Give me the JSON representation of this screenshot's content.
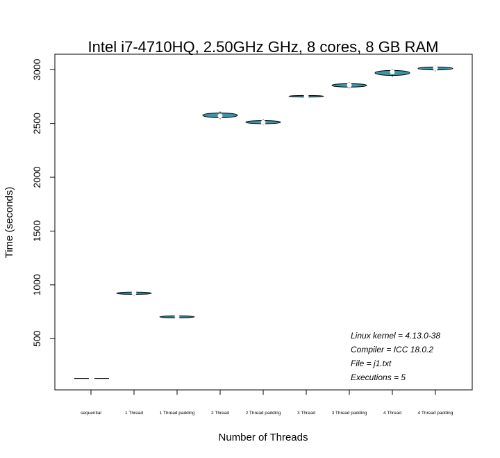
{
  "chart_data": {
    "type": "violin",
    "title": "Intel i7-4710HQ, 2.50GHz GHz, 8 cores, 8 GB RAM",
    "xlabel": "Number of Threads",
    "ylabel": "Time (seconds)",
    "ylim": [
      0,
      3150
    ],
    "yticks": [
      500,
      1000,
      1500,
      2000,
      2500,
      3000
    ],
    "grid": false,
    "fill_color": "#3a95ae",
    "categories": [
      "sequential",
      "1 Thread",
      "1 Thread padding",
      "2 Thread",
      "2 Thread padding",
      "3 Thread",
      "3 Thread padding",
      "4 Thread",
      "4 Thread padding"
    ],
    "medians": [
      130,
      925,
      703,
      2570,
      2510,
      2752,
      2856,
      2978,
      3013
    ],
    "mins": [
      130,
      912,
      693,
      2553,
      2497,
      2745,
      2838,
      2946,
      2997
    ],
    "maxs": [
      130,
      933,
      712,
      2598,
      2527,
      2760,
      2870,
      2993,
      3025
    ],
    "annotations": [
      "Linux kernel = 4.13.0-38",
      "Compiler = ICC 18.0.2",
      "File = j1.txt",
      "Executions = 5"
    ]
  }
}
